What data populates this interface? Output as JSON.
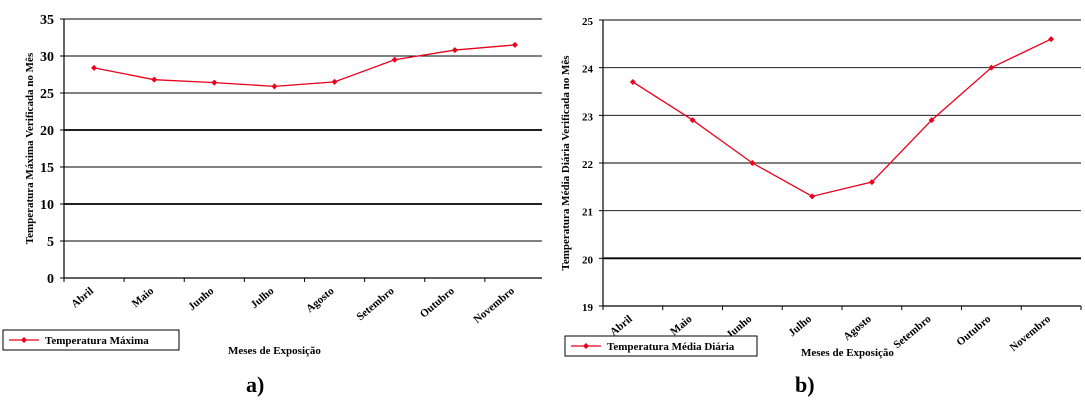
{
  "charts": [
    {
      "panel_label": "a)",
      "chart_data": {
        "type": "line",
        "categories": [
          "Abril",
          "Maio",
          "Junho",
          "Julho",
          "Agosto",
          "Setembro",
          "Outubro",
          "Novembro"
        ],
        "series": [
          {
            "name": "Temperatura Máxima",
            "values": [
              28.4,
              26.8,
              26.4,
              25.9,
              26.5,
              29.5,
              30.8,
              31.5
            ]
          }
        ],
        "title": "",
        "xlabel": "Meses de Exposição",
        "ylabel": "Temperatura Máxima Verificada no Mês",
        "ylim": [
          0,
          35
        ],
        "yticks": [
          "0",
          "5",
          "10",
          "15",
          "20",
          "25",
          "30",
          "35"
        ],
        "grid": true,
        "emphasized_gridlines": [
          10,
          20
        ],
        "legend_position": "bottom-left",
        "colors": {
          "series": "#e8001c",
          "grid": "#000000",
          "axis": "#000000"
        }
      }
    },
    {
      "panel_label": "b)",
      "chart_data": {
        "type": "line",
        "categories": [
          "Abril",
          "Maio",
          "Junho",
          "Julho",
          "Agosto",
          "Setembro",
          "Outubro",
          "Novembro"
        ],
        "series": [
          {
            "name": "Temperatura Média Diária",
            "values": [
              23.7,
              22.9,
              22.0,
              21.3,
              21.6,
              22.9,
              24.0,
              24.6
            ]
          }
        ],
        "title": "",
        "xlabel": "Meses de Exposição",
        "ylabel": "Temperatura Média Diária Verificada no Mês",
        "ylim": [
          19,
          25
        ],
        "yticks": [
          "19",
          "20",
          "21",
          "22",
          "23",
          "24",
          "25"
        ],
        "grid": true,
        "emphasized_gridlines": [
          20
        ],
        "legend_position": "bottom-left",
        "colors": {
          "series": "#e8001c",
          "grid": "#000000",
          "axis": "#000000"
        }
      }
    }
  ]
}
